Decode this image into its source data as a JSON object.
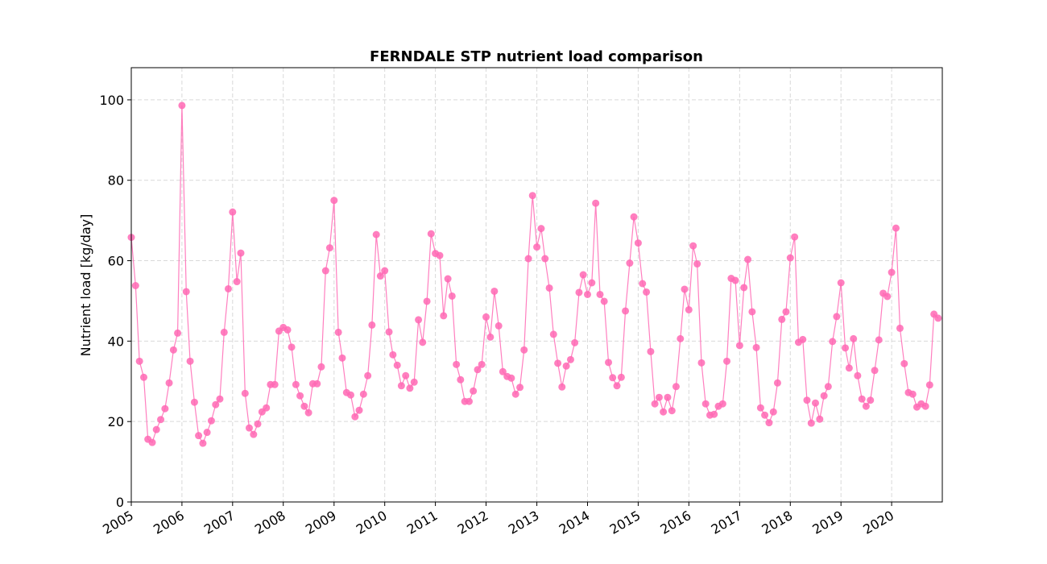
{
  "chart_data": {
    "type": "line",
    "title": "FERNDALE STP nutrient load comparison",
    "xlabel": "",
    "ylabel": "Nutrient load [kg/day]",
    "x_start": "2005-01",
    "x_frequency": "monthly",
    "xlim": [
      "2005-01-01",
      "2020-12-31"
    ],
    "ylim": [
      0,
      108
    ],
    "y_ticks": [
      0,
      20,
      40,
      60,
      80,
      100
    ],
    "x_ticks": [
      "2005",
      "2006",
      "2007",
      "2008",
      "2009",
      "2010",
      "2011",
      "2012",
      "2013",
      "2014",
      "2015",
      "2016",
      "2017",
      "2018",
      "2019",
      "2020"
    ],
    "grid": true,
    "legend": "none",
    "series": [
      {
        "color": "#ff69b4",
        "marker": "circle",
        "values": [
          65.8,
          53.8,
          35.0,
          31.0,
          15.6,
          14.8,
          18.0,
          20.5,
          23.2,
          29.6,
          37.8,
          42.0,
          98.6,
          52.3,
          35.0,
          24.8,
          16.5,
          14.6,
          17.3,
          20.2,
          24.2,
          25.6,
          42.2,
          53.0,
          72.1,
          54.8,
          61.9,
          27.0,
          18.4,
          16.8,
          19.4,
          22.4,
          23.4,
          29.2,
          29.2,
          42.5,
          43.4,
          42.8,
          38.5,
          29.2,
          26.4,
          23.8,
          22.2,
          29.4,
          29.4,
          33.6,
          57.5,
          63.2,
          75.0,
          42.2,
          35.8,
          27.2,
          26.6,
          21.2,
          22.8,
          26.8,
          31.4,
          44.0,
          66.5,
          56.2,
          57.5,
          42.3,
          36.6,
          34.0,
          28.9,
          31.4,
          28.3,
          29.8,
          45.3,
          39.7,
          49.9,
          66.7,
          61.8,
          61.3,
          46.3,
          55.5,
          51.2,
          34.2,
          30.4,
          25.0,
          25.0,
          27.6,
          32.9,
          34.2,
          46.0,
          41.0,
          52.4,
          43.8,
          32.4,
          31.2,
          30.8,
          26.8,
          28.5,
          37.8,
          60.5,
          76.2,
          63.4,
          68.0,
          60.5,
          53.2,
          41.7,
          34.5,
          28.6,
          33.8,
          35.4,
          39.6,
          52.1,
          56.5,
          51.6,
          54.5,
          74.3,
          51.6,
          49.9,
          34.7,
          30.9,
          28.9,
          31.0,
          47.5,
          59.4,
          70.9,
          64.4,
          54.3,
          52.2,
          37.4,
          24.4,
          26.0,
          22.4,
          26.0,
          22.7,
          28.7,
          40.6,
          52.9,
          47.8,
          63.7,
          59.2,
          34.6,
          24.4,
          21.6,
          21.8,
          23.8,
          24.4,
          35.0,
          55.6,
          55.1,
          38.9,
          53.3,
          60.3,
          47.3,
          38.4,
          23.4,
          21.6,
          19.7,
          22.4,
          29.6,
          45.4,
          47.3,
          60.7,
          65.9,
          39.7,
          40.4,
          25.3,
          19.6,
          24.6,
          20.6,
          26.4,
          28.7,
          39.9,
          46.1,
          54.5,
          38.3,
          33.3,
          40.6,
          31.4,
          25.6,
          23.8,
          25.3,
          32.7,
          40.3,
          51.9,
          51.1,
          57.1,
          68.1,
          43.2,
          34.4,
          27.2,
          26.8,
          23.6,
          24.4,
          23.8,
          29.1,
          46.7,
          45.7
        ]
      }
    ]
  }
}
